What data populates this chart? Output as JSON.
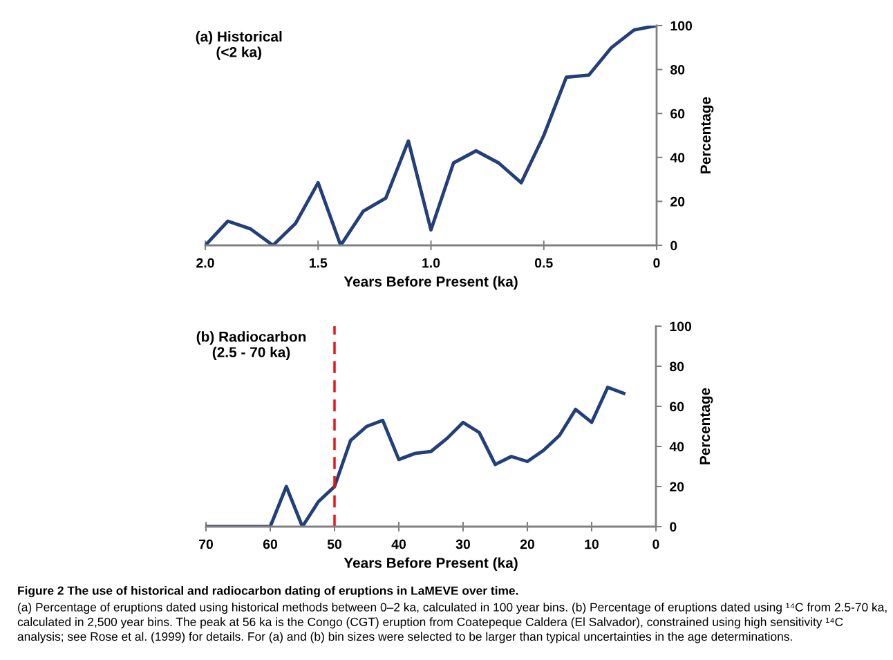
{
  "chart_data": [
    {
      "type": "line",
      "title": "(a) Historical\n(<2 ka)",
      "xlabel": "Years Before Present (ka)",
      "ylabel": "Percentage",
      "x": [
        2.0,
        1.9,
        1.8,
        1.7,
        1.6,
        1.5,
        1.4,
        1.3,
        1.2,
        1.1,
        1.0,
        0.9,
        0.8,
        0.7,
        0.6,
        0.5,
        0.4,
        0.3,
        0.2,
        0.1,
        0
      ],
      "series": [
        {
          "color": "#233f7a",
          "values": [
            0,
            11,
            7.5,
            0,
            10,
            28.5,
            0,
            15.5,
            21.5,
            47.5,
            7,
            37.5,
            43,
            37.5,
            28.5,
            50,
            76.5,
            77.5,
            90,
            98,
            100
          ]
        }
      ],
      "xlim": [
        2.0,
        0
      ],
      "xticks": [
        {
          "value": 2,
          "label": "2.0"
        },
        1.5,
        {
          "value": 1,
          "label": "1.0"
        },
        0.5,
        0
      ],
      "ylim": [
        0,
        100
      ],
      "yticks": [
        0,
        20,
        40,
        60,
        80,
        100
      ],
      "grid": false,
      "legend": false,
      "marker": "none",
      "line_style": "solid"
    },
    {
      "type": "line",
      "title": "(b) Radiocarbon\n(2.5 - 70 ka)",
      "xlabel": "Years Before Present (ka)",
      "ylabel": "Percentage",
      "x": [
        70,
        67.5,
        65,
        62.5,
        60,
        57.5,
        55,
        52.5,
        50,
        47.5,
        45,
        42.5,
        40,
        37.5,
        35,
        32.5,
        30,
        27.5,
        25,
        22.5,
        20,
        17.5,
        15,
        12.5,
        10,
        7.5,
        5
      ],
      "series": [
        {
          "color": "#233f7a",
          "values": [
            0,
            0,
            0,
            0,
            0,
            20,
            0,
            12.5,
            20,
            43,
            50,
            53,
            33.5,
            36.5,
            37.5,
            44,
            52,
            47,
            31,
            35,
            32.5,
            38,
            45.5,
            58.5,
            52,
            69.5,
            66.5
          ]
        }
      ],
      "xlim": [
        70,
        0
      ],
      "xticks": [
        70,
        60,
        50,
        40,
        30,
        20,
        10,
        0
      ],
      "ylim": [
        0,
        100
      ],
      "yticks": [
        0,
        20,
        40,
        60,
        80,
        100
      ],
      "grid": false,
      "legend": false,
      "marker": "none",
      "line_style": "solid",
      "ref_lines": [
        {
          "axis": "x",
          "value": 50,
          "color": "#e8141c",
          "line_style": "dashed"
        }
      ],
      "annotations": [
        "Figure 2 The use of historical and radiocarbon dating of eruptions in LaMEVE over time.",
        "(a) Percentage of eruptions dated using historical methods between 0–2 ka, calculated in 100 year bins. (b) Percentage of eruptions dated using ¹⁴C from 2.5-70 ka, calculated in 2,500 year bins. The peak at 56 ka is the Congo (CGT) eruption from Coatepeque Caldera (El Salvador), constrained using high sensitivity ¹⁴C analysis; see Rose et al. (1999) for details. For (a) and (b) bin sizes were selected to be larger than typical uncertainties in the age determinations."
      ]
    }
  ]
}
